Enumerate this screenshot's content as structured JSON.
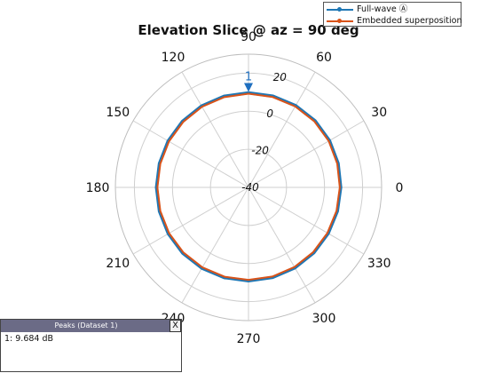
{
  "chart_data": {
    "type": "polar-line",
    "title": "Elevation Slice @ az = 90 deg",
    "angle_ticks": [
      "0",
      "30",
      "60",
      "90",
      "120",
      "150",
      "180",
      "210",
      "240",
      "270",
      "300",
      "330"
    ],
    "angle_tick_values": [
      0,
      30,
      60,
      90,
      120,
      150,
      180,
      210,
      240,
      270,
      300,
      330
    ],
    "radial_ticks": [
      "-40",
      "-20",
      "0",
      "20"
    ],
    "radial_tick_values": [
      -40,
      -20,
      0,
      20
    ],
    "rlim": [
      -40,
      30
    ],
    "grid": true,
    "legend_position": "top-right",
    "series": [
      {
        "name": "Full-wave Ⓐ",
        "color": "#1f77b4",
        "angles": [
          0,
          15,
          30,
          45,
          60,
          75,
          90,
          105,
          120,
          135,
          150,
          165,
          180,
          195,
          210,
          225,
          240,
          255,
          270,
          285,
          300,
          315,
          330,
          345
        ],
        "values": [
          8.5,
          8.8,
          9.2,
          9.5,
          9.6,
          9.65,
          9.68,
          9.6,
          9.4,
          9.1,
          8.8,
          8.5,
          8.4,
          8.5,
          8.7,
          8.9,
          9.0,
          9.1,
          9.1,
          9.0,
          8.8,
          8.6,
          8.4,
          8.4
        ]
      },
      {
        "name": "Embedded superposition",
        "color": "#d95319",
        "angles": [
          0,
          15,
          30,
          45,
          60,
          75,
          90,
          105,
          120,
          135,
          150,
          165,
          180,
          195,
          210,
          225,
          240,
          255,
          270,
          285,
          300,
          315,
          330,
          345
        ],
        "values": [
          8.0,
          8.3,
          8.7,
          9.0,
          9.1,
          9.15,
          9.2,
          9.1,
          8.9,
          8.6,
          8.3,
          8.0,
          7.9,
          8.0,
          8.2,
          8.4,
          8.5,
          8.6,
          8.6,
          8.5,
          8.3,
          8.1,
          7.9,
          7.9
        ]
      }
    ],
    "marker": {
      "label": "1",
      "angle": 90,
      "color": "#1f6fbf"
    }
  },
  "legend": {
    "items": [
      {
        "label": "Full-wave Ⓐ",
        "color": "#1f77b4"
      },
      {
        "label": "Embedded superposition",
        "color": "#d95319"
      }
    ]
  },
  "peaks_panel": {
    "title": "Peaks (Dataset 1)",
    "close_label": "X",
    "rows": [
      "1: 9.684 dB"
    ]
  }
}
